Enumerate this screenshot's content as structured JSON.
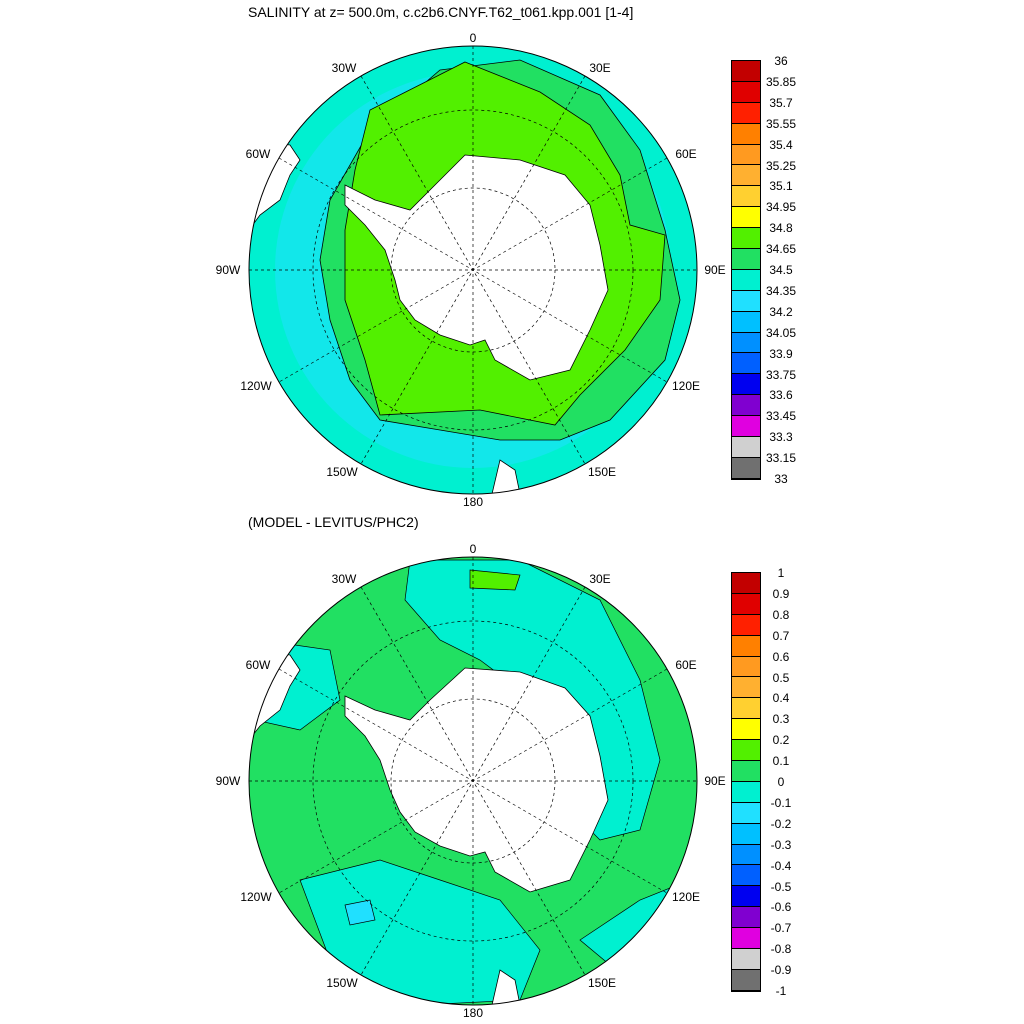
{
  "title_top": "SALINITY at z= 500.0m, c.c2b6.CNYF.T62_t061.kpp.001 [1-4]",
  "title_bottom": "(MODEL - LEVITUS/PHC2)",
  "lon_labels": [
    "0",
    "30E",
    "60E",
    "90E",
    "120E",
    "150E",
    "180",
    "150W",
    "120W",
    "90W",
    "60W",
    "30W"
  ],
  "map_top": {
    "legend_values": [
      "36",
      "35.85",
      "35.7",
      "35.55",
      "35.4",
      "35.25",
      "35.1",
      "34.95",
      "34.8",
      "34.65",
      "34.5",
      "34.35",
      "34.2",
      "34.05",
      "33.9",
      "33.75",
      "33.6",
      "33.45",
      "33.3",
      "33.15",
      "33"
    ],
    "legend_colors": [
      "#c20000",
      "#e00000",
      "#ff2000",
      "#ff8000",
      "#ff9a20",
      "#ffb030",
      "#ffd030",
      "#ffff00",
      "#52f000",
      "#21e062",
      "#00f0d0",
      "#20e0ff",
      "#00c0ff",
      "#0090ff",
      "#0060ff",
      "#0000f0",
      "#8000d0",
      "#e000e0",
      "#d0d0d0",
      "#707070"
    ]
  },
  "map_bottom": {
    "legend_values": [
      "1",
      "0.9",
      "0.8",
      "0.7",
      "0.6",
      "0.5",
      "0.4",
      "0.3",
      "0.2",
      "0.1",
      "0",
      "-0.1",
      "-0.2",
      "-0.3",
      "-0.4",
      "-0.5",
      "-0.6",
      "-0.7",
      "-0.8",
      "-0.9",
      "-1"
    ],
    "legend_colors": [
      "#c20000",
      "#e00000",
      "#ff2000",
      "#ff8000",
      "#ff9a20",
      "#ffb030",
      "#ffd030",
      "#ffff00",
      "#52f000",
      "#21e062",
      "#00f0d0",
      "#20e0ff",
      "#00c0ff",
      "#0090ff",
      "#0060ff",
      "#0000f0",
      "#8000d0",
      "#e000e0",
      "#d0d0d0",
      "#707070"
    ]
  },
  "colors": {
    "green": "#52f000",
    "seagreen": "#21e062",
    "aqua": "#00f0d0",
    "cyan": "#20e0ff",
    "land": "#ffffff"
  }
}
